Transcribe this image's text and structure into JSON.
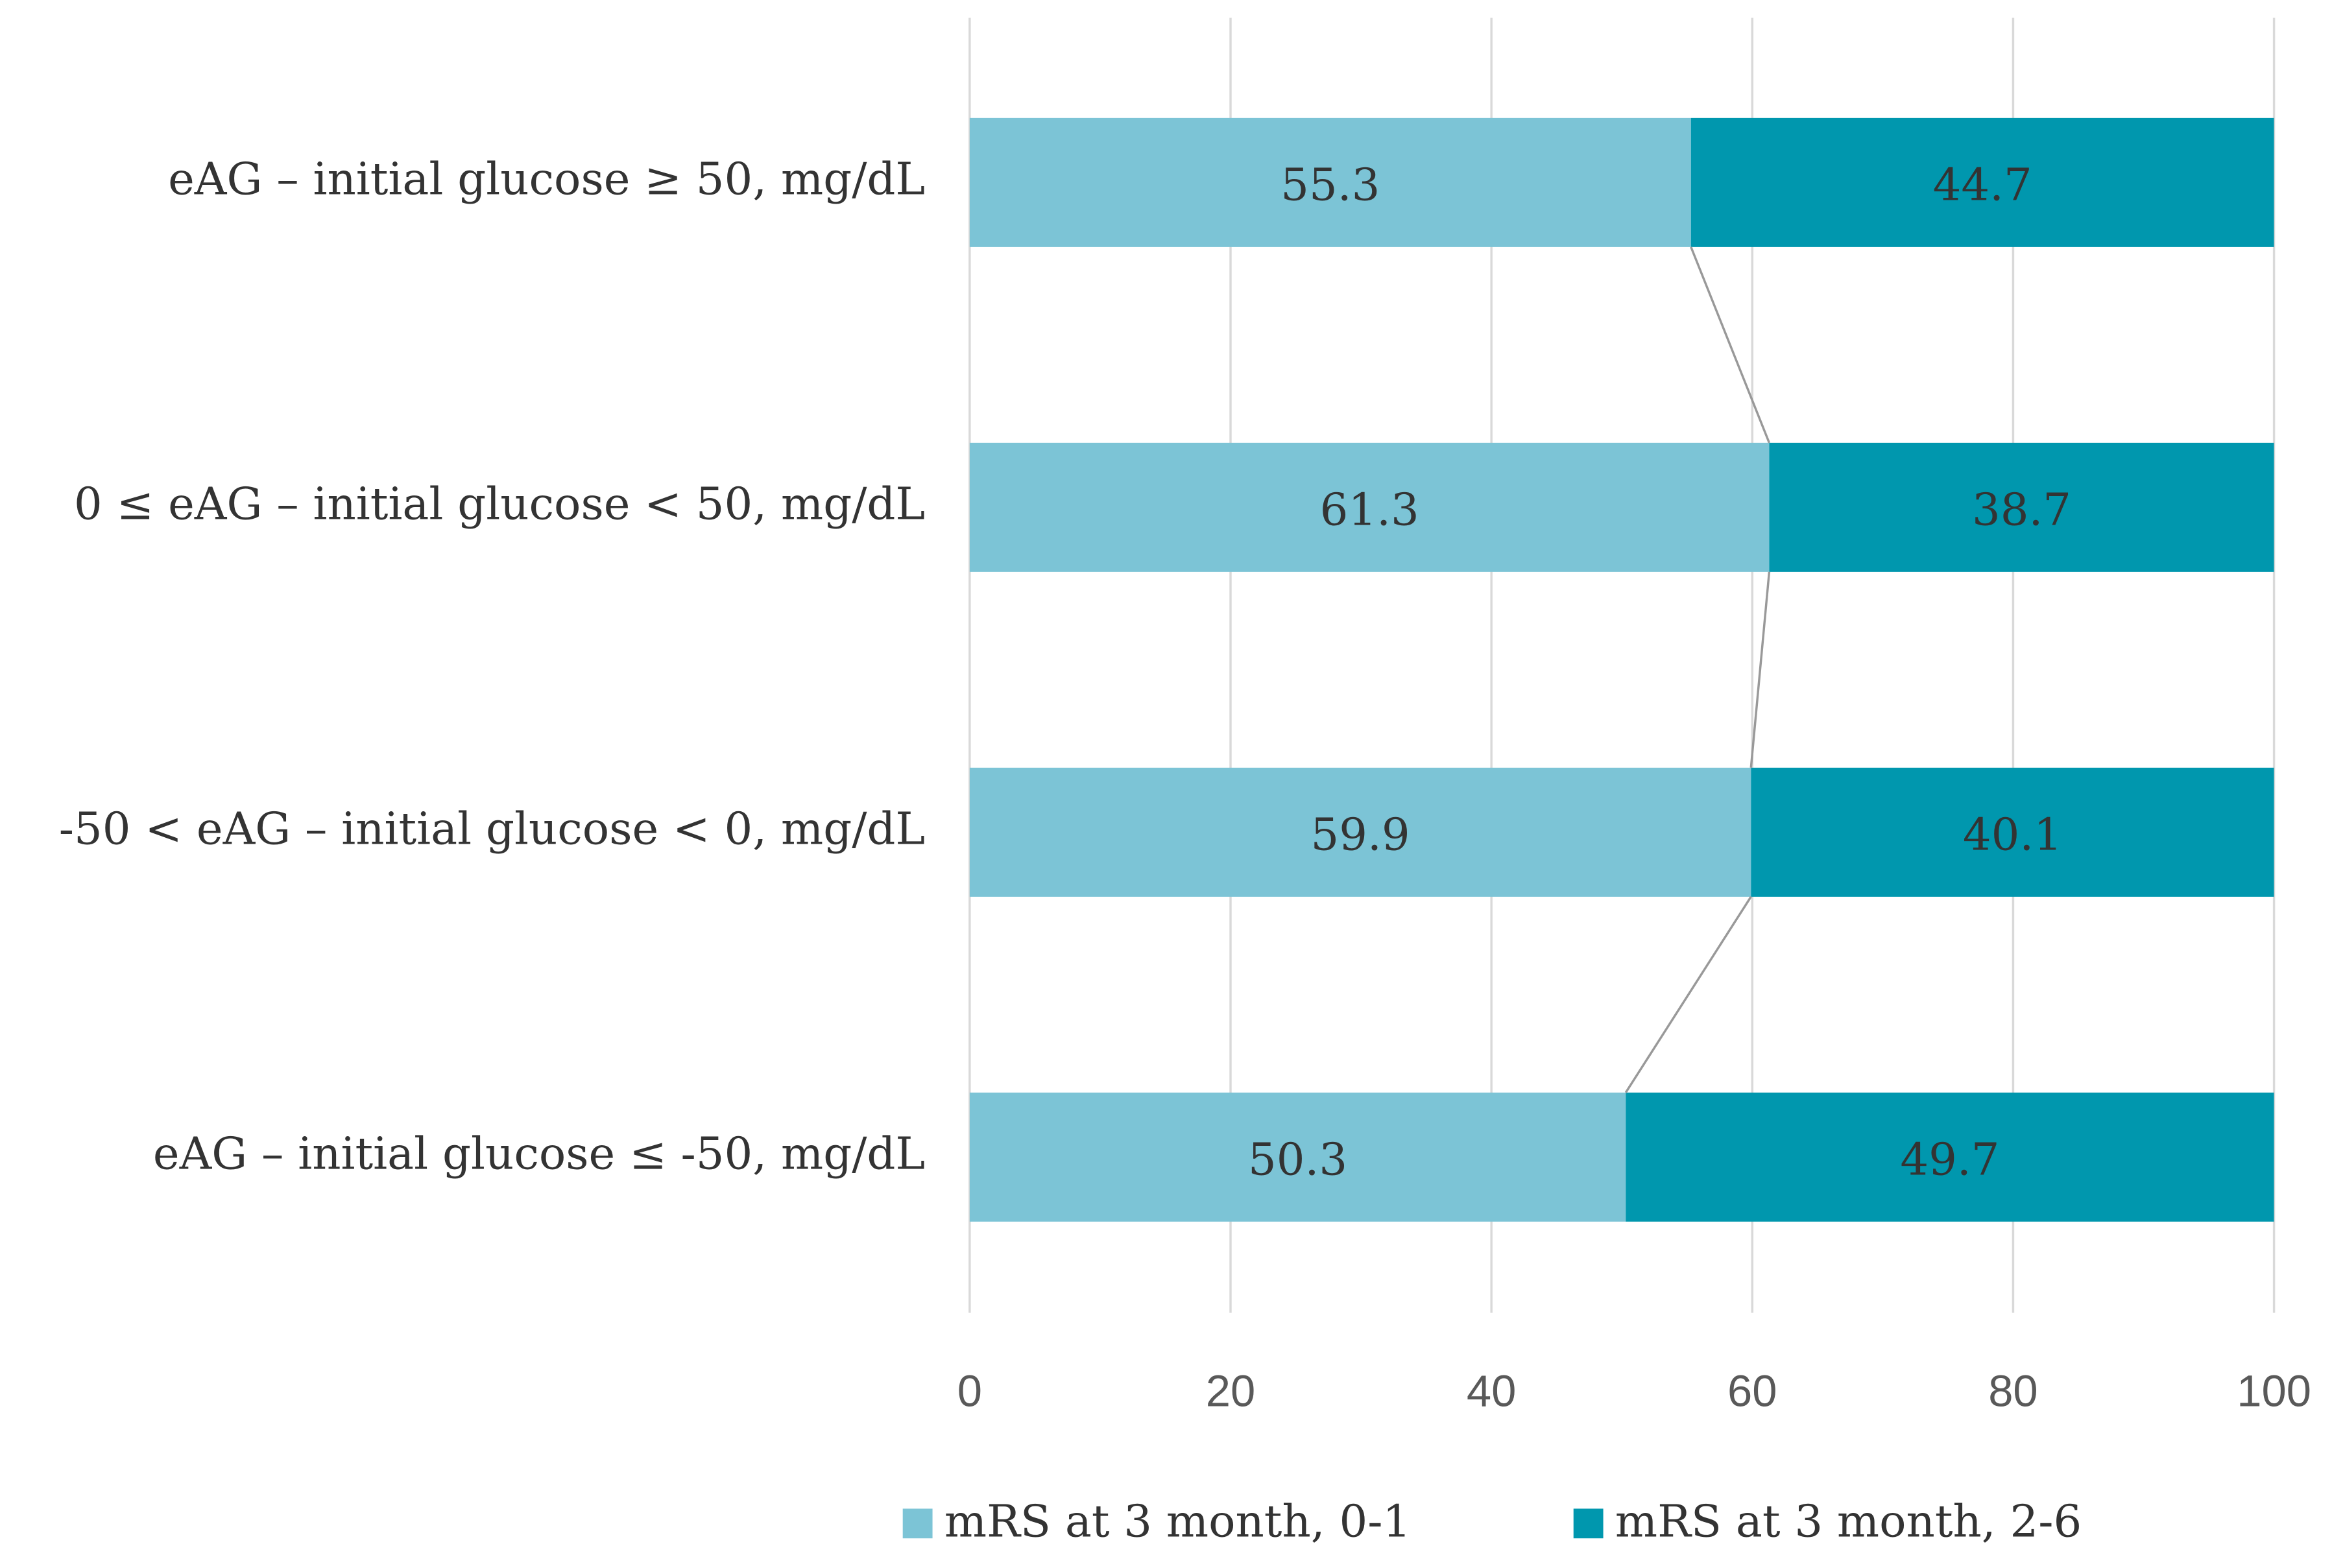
{
  "chart_data": {
    "type": "stacked_barh",
    "categories": [
      "eAG – initial glucose ≥ 50, mg/dL",
      "0 ≤ eAG – initial glucose < 50, mg/dL",
      "-50 < eAG – initial glucose < 0, mg/dL",
      "eAG – initial glucose ≤ -50, mg/dL"
    ],
    "series": [
      {
        "name": "mRS at 3 month, 0-1",
        "color": "#7cc4d6",
        "values": [
          55.3,
          61.3,
          59.9,
          50.3
        ]
      },
      {
        "name": "mRS at 3 month, 2-6",
        "color": "#0097ae",
        "values": [
          44.7,
          38.7,
          40.1,
          49.7
        ]
      }
    ],
    "xlim": [
      0,
      100
    ],
    "xticks": [
      0,
      20,
      40,
      60,
      80,
      100
    ],
    "grid": true,
    "legend": "bottom",
    "series_lines": true
  }
}
